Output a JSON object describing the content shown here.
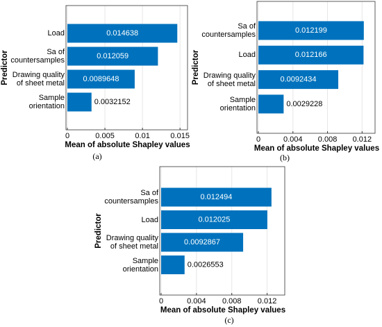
{
  "chart_data": [
    {
      "type": "barh",
      "caption": "(a)",
      "xlabel": "Mean of absolute Shapley values",
      "ylabel": "Predictor",
      "categories": [
        "Load",
        "Sa of countersamples",
        "Drawing quality of sheet metal",
        "Sample orientation"
      ],
      "values": [
        0.014638,
        0.012059,
        0.0089648,
        0.0032152
      ],
      "color": "#0072bd",
      "xlim": [
        0,
        0.016
      ],
      "xticks": [
        0,
        0.005,
        0.01,
        0.015
      ],
      "grid": true
    },
    {
      "type": "barh",
      "caption": "(b)",
      "xlabel": "Mean of absolute Shapley values",
      "ylabel": "Predictor",
      "categories": [
        "Sa of countersamples",
        "Load",
        "Drawing quality of sheet metal",
        "Sample orientation"
      ],
      "values": [
        0.012199,
        0.012166,
        0.0092434,
        0.0029228
      ],
      "color": "#0072bd",
      "xlim": [
        0,
        0.0135
      ],
      "xticks": [
        0,
        0.004,
        0.008,
        0.012
      ],
      "grid": true
    },
    {
      "type": "barh",
      "caption": "(c)",
      "xlabel": "Mean of absolute Shapley values",
      "ylabel": "Predictor",
      "categories": [
        "Sa of countersamples",
        "Load",
        "Drawing quality of sheet metal",
        "Sample orientation"
      ],
      "values": [
        0.012494,
        0.012025,
        0.0092867,
        0.0026553
      ],
      "color": "#0072bd",
      "xlim": [
        0,
        0.014
      ],
      "xticks": [
        0,
        0.004,
        0.008,
        0.012
      ],
      "grid": true
    }
  ]
}
